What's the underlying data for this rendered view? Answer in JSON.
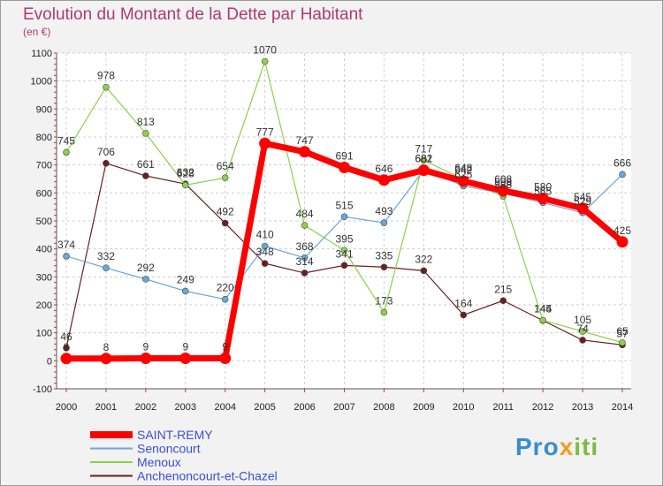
{
  "title": "Evolution du Montant de la Dette par Habitant",
  "subtitle": "(en €)",
  "logo": "Proxiti",
  "chart_data": {
    "type": "line",
    "title": "Evolution du Montant de la Dette par Habitant",
    "ylabel": "(en €)",
    "xlabel": "",
    "x": [
      "2000",
      "2001",
      "2002",
      "2003",
      "2004",
      "2005",
      "2006",
      "2007",
      "2008",
      "2009",
      "2010",
      "2011",
      "2012",
      "2013",
      "2014"
    ],
    "ylim": [
      -100,
      1100
    ],
    "yticks": [
      "-100",
      "0",
      "100",
      "200",
      "300",
      "400",
      "500",
      "600",
      "700",
      "800",
      "900",
      "1000",
      "1100"
    ],
    "grid": true,
    "legend_position": "bottom-left",
    "series": [
      {
        "name": "Anchenoncourt-et-Chazel",
        "color": "#6b1f1f",
        "width": 1.2,
        "marker": 3.5,
        "values": [
          46,
          706,
          661,
          632,
          492,
          348,
          314,
          341,
          335,
          322,
          164,
          215,
          144,
          74,
          57
        ]
      },
      {
        "name": "Menoux",
        "color": "#8ed04a",
        "width": 1.2,
        "marker": 3.5,
        "values": [
          745,
          978,
          813,
          628,
          654,
          1070,
          484,
          395,
          173,
          717,
          648,
          588,
          145,
          105,
          65
        ]
      },
      {
        "name": "Senoncourt",
        "color": "#6aa7d8",
        "width": 1.2,
        "marker": 3.5,
        "values": [
          374,
          332,
          292,
          249,
          220,
          410,
          368,
          515,
          493,
          682,
          625,
          598,
          565,
          529,
          666
        ]
      },
      {
        "name": "SAINT-REMY",
        "color": "#ff0000",
        "width": 7,
        "marker": 6.5,
        "values": [
          8,
          8,
          9,
          9,
          9,
          777,
          747,
          691,
          646,
          681,
          642,
          608,
          580,
          545,
          425
        ]
      }
    ],
    "labels_per_point": {
      "SAINT-REMY": [
        "8",
        "8",
        "9",
        "9",
        "9",
        "777",
        "747",
        "691",
        "646",
        "681",
        "642",
        "608",
        "580",
        "545",
        "425"
      ],
      "Senoncourt": [
        "374",
        "332",
        "292",
        "249",
        "220",
        "410",
        "368",
        "515",
        "493",
        "682",
        "625",
        "598",
        "565",
        "529",
        "666"
      ],
      "Menoux": [
        "745",
        "978",
        "813",
        "628",
        "654",
        "1070",
        "484",
        "395",
        "173",
        "717",
        "648",
        "588",
        "145",
        "105",
        "65"
      ],
      "Anchenoncourt-et-Chazel": [
        "46",
        "706",
        "661",
        "632",
        "492",
        "348",
        "314",
        "341",
        "335",
        "322",
        "164",
        "215",
        "144",
        "74",
        "57"
      ]
    }
  },
  "legend": [
    {
      "name": "SAINT-REMY",
      "color": "#ff0000"
    },
    {
      "name": "Senoncourt",
      "color": "#6aa7d8"
    },
    {
      "name": "Menoux",
      "color": "#8ed04a"
    },
    {
      "name": "Anchenoncourt-et-Chazel",
      "color": "#6b1f1f"
    }
  ]
}
